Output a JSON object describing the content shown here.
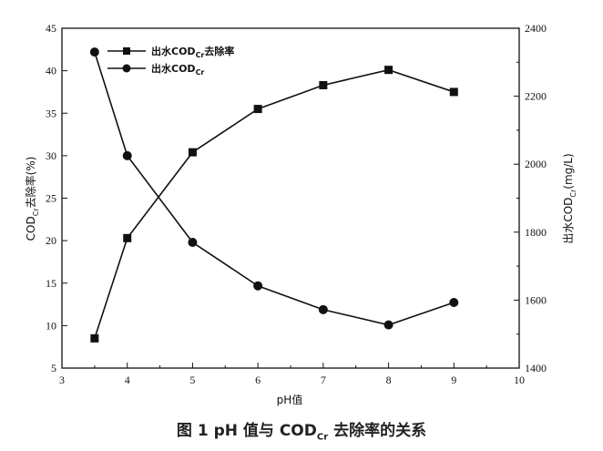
{
  "chart_data": {
    "type": "line",
    "title": "",
    "xlabel": "pH值",
    "ylabel_left_main": "COD",
    "ylabel_left_sub": "Cr",
    "ylabel_left_rest": "去除率(%)",
    "ylabel_right_pre": "出水COD",
    "ylabel_right_sub": "Cr",
    "ylabel_right_rest": "(mg/L)",
    "xlim": [
      3,
      10
    ],
    "ylim_left": [
      5,
      45
    ],
    "ylim_right": [
      1400,
      2400
    ],
    "x_ticks": [
      "3",
      "4",
      "5",
      "6",
      "7",
      "8",
      "9",
      "10"
    ],
    "y_left_ticks": [
      "5",
      "10",
      "15",
      "20",
      "25",
      "30",
      "35",
      "40",
      "45"
    ],
    "y_right_ticks": [
      "1400",
      "1600",
      "1800",
      "2000",
      "2200",
      "2400"
    ],
    "legend_position": "top-left",
    "grid": false,
    "series": [
      {
        "name_pre": "出水COD",
        "name_sub": "Cr",
        "name_rest": "去除率",
        "marker": "square",
        "axis": "left",
        "x": [
          3.5,
          4,
          5,
          6,
          7,
          8,
          9
        ],
        "values": [
          8.5,
          20.3,
          30.4,
          35.5,
          38.3,
          40.1,
          37.5
        ]
      },
      {
        "name_pre": "出水COD",
        "name_sub": "Cr",
        "name_rest": "",
        "marker": "circle",
        "axis": "right",
        "x": [
          3.5,
          4,
          5,
          6,
          7,
          8,
          9
        ],
        "values": [
          2330,
          2025,
          1770,
          1642,
          1572,
          1527,
          1593
        ]
      }
    ]
  },
  "caption": {
    "prefix": "图 1  pH 值与 COD",
    "sub": "Cr",
    "suffix": " 去除率的关系"
  }
}
